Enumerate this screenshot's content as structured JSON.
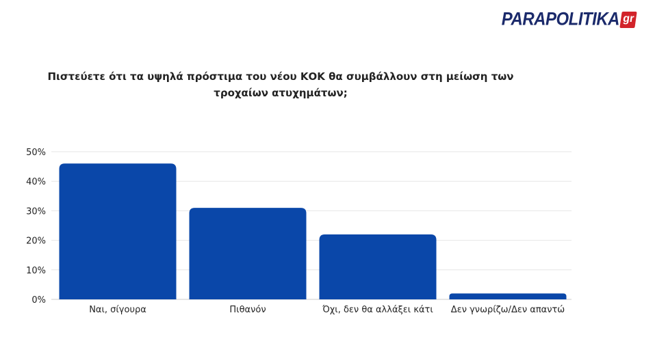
{
  "brand": {
    "name": "PARAPOLITIKA",
    "suffix": "gr",
    "primary_color": "#1b2a6b",
    "accent_color": "#d2232a"
  },
  "chart_data": {
    "type": "bar",
    "title": "Πιστεύετε ότι τα υψηλά πρόστιμα του νέου ΚΟΚ θα συμβάλλουν στη μείωση των τροχαίων ατυχημάτων;",
    "categories": [
      "Ναι, σίγουρα",
      "Πιθανόν",
      "Όχι, δεν θα αλλάξει κάτι",
      "Δεν γνωρίζω/Δεν απαντώ"
    ],
    "values": [
      46,
      31,
      22,
      2
    ],
    "unit": "%",
    "ylim": [
      0,
      50
    ],
    "yticks": [
      "0%",
      "10%",
      "20%",
      "30%",
      "40%",
      "50%"
    ],
    "grid": true,
    "bar_color": "#0a47a9",
    "legend": "none"
  }
}
